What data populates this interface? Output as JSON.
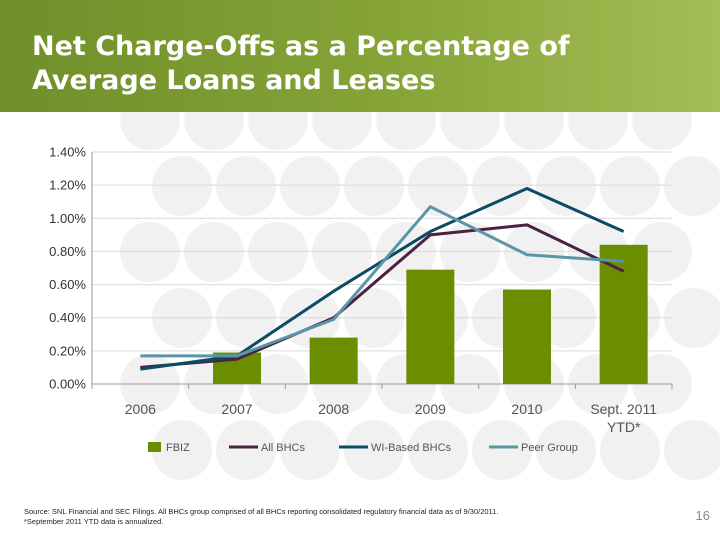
{
  "slide": {
    "title": "Net Charge-Offs as a Percentage of Average Loans and Leases",
    "footnote_line1": "Source: SNL Financial and SEC Filings. All BHCs group comprised of all BHCs reporting consolidated regulatory financial data as of 9/30/2011.",
    "footnote_line2": "*September 2011 YTD data is annualized.",
    "page_number": "16",
    "colors": {
      "header": "#7a9a30",
      "dots": "#ececec"
    }
  },
  "chart_data": {
    "type": "bar",
    "title": "",
    "xlabel": "",
    "ylabel": "",
    "categories": [
      "2006",
      "2007",
      "2008",
      "2009",
      "2010",
      "Sept. 2011 YTD*"
    ],
    "category_lines": [
      [
        "2006"
      ],
      [
        "2007"
      ],
      [
        "2008"
      ],
      [
        "2009"
      ],
      [
        "2010"
      ],
      [
        "Sept. 2011",
        "YTD*"
      ]
    ],
    "ylim": [
      0,
      1.4
    ],
    "yticks": [
      0,
      0.2,
      0.4,
      0.6,
      0.8,
      1.0,
      1.2,
      1.4
    ],
    "ytick_labels": [
      "0.00%",
      "0.20%",
      "0.40%",
      "0.60%",
      "0.80%",
      "1.00%",
      "1.20%",
      "1.40%"
    ],
    "grid": true,
    "legend_position": "bottom",
    "series": [
      {
        "name": "FBIZ",
        "kind": "bar",
        "color": "#6b8e00",
        "values": [
          null,
          0.19,
          0.28,
          0.69,
          0.57,
          0.84
        ]
      },
      {
        "name": "All BHCs",
        "kind": "line",
        "color": "#4a2342",
        "values": [
          0.1,
          0.15,
          0.4,
          0.9,
          0.96,
          0.68
        ]
      },
      {
        "name": "WI-Based BHCs",
        "kind": "line",
        "color": "#0d4a63",
        "values": [
          0.09,
          0.17,
          0.56,
          0.92,
          1.18,
          0.92
        ]
      },
      {
        "name": "Peer Group",
        "kind": "line",
        "color": "#5b96a8",
        "values": [
          0.17,
          0.17,
          0.39,
          1.07,
          0.78,
          0.74
        ]
      }
    ]
  }
}
